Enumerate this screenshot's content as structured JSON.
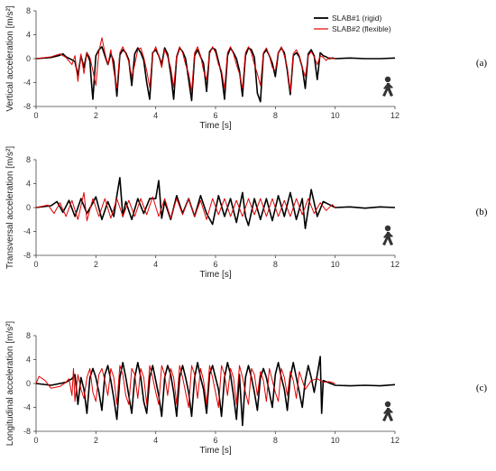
{
  "chart_data": [
    {
      "type": "line",
      "panel_label": "(a)",
      "xlabel": "Time [s]",
      "ylabel": "Vertical acceleration  [m/s²]",
      "xlim": [
        0,
        12
      ],
      "ylim": [
        -8,
        8
      ],
      "xticks": [
        0,
        2,
        4,
        6,
        8,
        10,
        12
      ],
      "yticks": [
        -8,
        -4,
        0,
        4,
        8
      ],
      "grid": false,
      "legend": "top-right",
      "icon": "walking-person-icon",
      "series": [
        {
          "name": "SLAB#1 (rigid)",
          "color": "#000000",
          "x": [
            0,
            0.5,
            0.75,
            0.9,
            1.0,
            1.2,
            1.3,
            1.4,
            1.5,
            1.6,
            1.7,
            1.8,
            1.85,
            1.9,
            2.0,
            2.1,
            2.2,
            2.3,
            2.4,
            2.5,
            2.6,
            2.7,
            2.8,
            2.9,
            3.0,
            3.1,
            3.2,
            3.3,
            3.4,
            3.5,
            3.6,
            3.7,
            3.8,
            3.9,
            4.0,
            4.1,
            4.2,
            4.3,
            4.4,
            4.5,
            4.6,
            4.7,
            4.8,
            4.9,
            5.0,
            5.1,
            5.2,
            5.3,
            5.4,
            5.5,
            5.6,
            5.7,
            5.8,
            5.9,
            6.0,
            6.1,
            6.2,
            6.3,
            6.4,
            6.5,
            6.6,
            6.7,
            6.8,
            6.9,
            7.0,
            7.1,
            7.2,
            7.3,
            7.4,
            7.5,
            7.6,
            7.7,
            7.8,
            7.9,
            8.0,
            8.1,
            8.2,
            8.3,
            8.4,
            8.5,
            8.6,
            8.7,
            8.8,
            8.9,
            9.0,
            9.1,
            9.2,
            9.3,
            9.4,
            9.5,
            9.6,
            9.7,
            9.8,
            9.9,
            10.0,
            10.5,
            11.0,
            11.5,
            12.0
          ],
          "y": [
            0,
            0.2,
            0.5,
            0.8,
            0.3,
            -0.2,
            -0.5,
            -2.8,
            0.5,
            -1.5,
            1.0,
            -0.4,
            -4.0,
            -6.8,
            0.5,
            1.5,
            2.0,
            0.5,
            -1.0,
            0.8,
            -0.5,
            -6.3,
            0.6,
            1.5,
            1.0,
            -0.2,
            -4.5,
            0.8,
            1.8,
            1.0,
            -0.3,
            -4.0,
            -6.8,
            1.0,
            1.5,
            0.5,
            -1.0,
            1.8,
            0.8,
            -2.5,
            -6.8,
            0.3,
            1.8,
            1.2,
            0.0,
            -3.5,
            -7.0,
            0.5,
            1.5,
            0.3,
            -0.8,
            -5.5,
            1.2,
            1.8,
            1.5,
            -0.5,
            -2.5,
            -6.8,
            0.5,
            1.8,
            1.0,
            0.0,
            -2.0,
            -6.3,
            0.5,
            1.8,
            1.5,
            0.2,
            -5.8,
            -7.2,
            0.8,
            1.5,
            0.5,
            -0.8,
            -3.0,
            1.0,
            1.8,
            1.0,
            -2.0,
            -6.0,
            0.5,
            1.0,
            0.3,
            -1.5,
            -5.0,
            0.8,
            1.5,
            0.5,
            -3.5,
            1.0,
            0.5,
            0.3,
            0.0,
            0.1,
            0.0,
            0.1,
            0.0,
            0.0,
            0.1
          ]
        },
        {
          "name": "SLAB#2 (flexible)",
          "color": "#e00000",
          "x": [
            0,
            0.5,
            0.8,
            1.0,
            1.2,
            1.3,
            1.4,
            1.5,
            1.6,
            1.7,
            1.8,
            1.9,
            2.0,
            2.1,
            2.2,
            2.3,
            2.4,
            2.5,
            2.6,
            2.7,
            2.8,
            2.9,
            3.0,
            3.1,
            3.2,
            3.3,
            3.4,
            3.5,
            3.6,
            3.7,
            3.8,
            3.9,
            4.0,
            4.1,
            4.2,
            4.3,
            4.4,
            4.5,
            4.6,
            4.7,
            4.8,
            4.9,
            5.0,
            5.1,
            5.2,
            5.3,
            5.4,
            5.5,
            5.6,
            5.7,
            5.8,
            5.9,
            6.0,
            6.1,
            6.2,
            6.3,
            6.4,
            6.5,
            6.6,
            6.7,
            6.8,
            6.9,
            7.0,
            7.1,
            7.2,
            7.3,
            7.4,
            7.5,
            7.6,
            7.7,
            7.8,
            7.9,
            8.0,
            8.1,
            8.2,
            8.3,
            8.4,
            8.5,
            8.6,
            8.7,
            8.8,
            8.9,
            9.0,
            9.1,
            9.2,
            9.3,
            9.4,
            9.5,
            9.6,
            9.7,
            9.8,
            9.9,
            10.0
          ],
          "y": [
            0,
            0.3,
            0.8,
            0.2,
            -1.0,
            0.5,
            -3.8,
            0.8,
            -2.5,
            1.0,
            0.2,
            -2.0,
            -4.5,
            1.2,
            3.5,
            1.0,
            -1.0,
            1.5,
            -2.0,
            -5.0,
            1.0,
            2.0,
            0.8,
            -0.5,
            -3.0,
            -1.0,
            1.5,
            1.8,
            0.2,
            -2.0,
            -4.8,
            0.8,
            2.0,
            0.5,
            -1.5,
            1.5,
            0.3,
            -1.5,
            -4.8,
            0.5,
            2.0,
            1.0,
            -1.0,
            -2.5,
            -5.5,
            1.0,
            2.0,
            0.5,
            -2.0,
            -3.5,
            0.8,
            2.0,
            1.0,
            -1.0,
            -2.0,
            -5.0,
            1.0,
            2.0,
            0.8,
            -1.0,
            -2.5,
            -5.0,
            1.0,
            2.0,
            1.0,
            -1.0,
            -2.5,
            -4.5,
            1.0,
            1.8,
            0.5,
            -1.5,
            -2.0,
            1.0,
            2.0,
            0.5,
            -1.5,
            -5.5,
            0.8,
            1.5,
            0.5,
            -1.5,
            -3.0,
            0.5,
            1.2,
            0.3,
            -1.0,
            0.5,
            0.2,
            -0.3,
            0.2,
            0.0,
            0.0
          ]
        }
      ]
    },
    {
      "type": "line",
      "panel_label": "(b)",
      "xlabel": "Time [s]",
      "ylabel": "Transversal acceleration  [m/s²]",
      "xlim": [
        0,
        12
      ],
      "ylim": [
        -8,
        8
      ],
      "xticks": [
        0,
        2,
        4,
        6,
        8,
        10,
        12
      ],
      "yticks": [
        -8,
        -4,
        0,
        4,
        8
      ],
      "grid": false,
      "icon": "walking-person-icon",
      "series": [
        {
          "name": "SLAB#1 (rigid)",
          "color": "#000000",
          "x": [
            0,
            0.5,
            0.7,
            0.9,
            1.1,
            1.3,
            1.5,
            1.7,
            1.9,
            2.0,
            2.2,
            2.4,
            2.6,
            2.7,
            2.8,
            2.9,
            3.0,
            3.2,
            3.4,
            3.6,
            3.8,
            4.0,
            4.1,
            4.2,
            4.3,
            4.5,
            4.7,
            4.9,
            5.1,
            5.3,
            5.5,
            5.7,
            5.9,
            6.1,
            6.3,
            6.5,
            6.7,
            6.9,
            7.0,
            7.1,
            7.3,
            7.5,
            7.7,
            7.9,
            8.1,
            8.3,
            8.5,
            8.7,
            8.9,
            9.0,
            9.2,
            9.4,
            9.6,
            9.8,
            10.0,
            10.5,
            11.0,
            11.5,
            12.0
          ],
          "y": [
            0,
            0.3,
            1.0,
            -0.8,
            1.2,
            -1.5,
            1.5,
            -1.0,
            0.8,
            1.8,
            -2.0,
            1.0,
            -1.5,
            2.0,
            5.0,
            -1.5,
            1.0,
            -2.0,
            1.5,
            -1.0,
            1.5,
            1.5,
            4.5,
            -1.8,
            1.0,
            -2.0,
            2.0,
            -1.0,
            1.5,
            -1.5,
            2.0,
            -1.0,
            -2.8,
            2.0,
            -1.5,
            1.5,
            -2.5,
            2.5,
            -1.5,
            -3.0,
            1.5,
            -2.0,
            1.5,
            -2.2,
            2.0,
            -1.5,
            2.5,
            -2.0,
            1.5,
            -3.5,
            3.0,
            -1.5,
            1.0,
            0.5,
            0.0,
            0.1,
            -0.1,
            0.1,
            0.0
          ]
        },
        {
          "name": "SLAB#2 (flexible)",
          "color": "#e00000",
          "x": [
            0,
            0.4,
            0.6,
            0.8,
            1.0,
            1.2,
            1.4,
            1.6,
            1.7,
            1.9,
            2.1,
            2.3,
            2.5,
            2.7,
            2.9,
            3.1,
            3.3,
            3.5,
            3.7,
            3.9,
            4.1,
            4.3,
            4.5,
            4.7,
            4.9,
            5.1,
            5.3,
            5.5,
            5.7,
            5.9,
            6.1,
            6.3,
            6.5,
            6.7,
            6.9,
            7.1,
            7.3,
            7.5,
            7.7,
            7.9,
            8.1,
            8.3,
            8.5,
            8.7,
            8.9,
            9.1,
            9.3,
            9.5,
            9.7,
            9.9,
            10.0
          ],
          "y": [
            0,
            0.4,
            -1.0,
            0.8,
            -1.5,
            1.2,
            -2.0,
            2.5,
            -2.2,
            1.5,
            -1.5,
            1.5,
            -1.8,
            1.5,
            -1.5,
            1.2,
            -1.5,
            1.5,
            -1.2,
            1.8,
            -1.5,
            1.5,
            -1.8,
            1.5,
            -1.2,
            1.5,
            -1.5,
            1.2,
            -2.0,
            1.5,
            -1.2,
            1.5,
            -1.5,
            1.2,
            -1.5,
            1.5,
            -1.2,
            1.5,
            -1.5,
            1.5,
            -1.5,
            1.2,
            -1.5,
            1.5,
            -1.2,
            1.5,
            -1.0,
            0.8,
            -0.5,
            0.5,
            0.0
          ]
        }
      ]
    },
    {
      "type": "line",
      "panel_label": "(c)",
      "xlabel": "Time [s]",
      "ylabel": "Longitudinal acceleration  [m/s²]",
      "xlim": [
        0,
        12
      ],
      "ylim": [
        -8,
        8
      ],
      "xticks": [
        0,
        2,
        4,
        6,
        8,
        10,
        12
      ],
      "yticks": [
        -8,
        -4,
        0,
        4,
        8
      ],
      "grid": false,
      "icon": "walking-person-icon",
      "series": [
        {
          "name": "SLAB#1 (rigid)",
          "color": "#000000",
          "x": [
            0,
            0.5,
            1.0,
            1.2,
            1.3,
            1.4,
            1.5,
            1.6,
            1.7,
            1.8,
            1.9,
            2.0,
            2.1,
            2.2,
            2.3,
            2.4,
            2.5,
            2.6,
            2.7,
            2.8,
            2.9,
            3.0,
            3.1,
            3.2,
            3.3,
            3.4,
            3.5,
            3.6,
            3.7,
            3.8,
            3.9,
            4.0,
            4.1,
            4.2,
            4.3,
            4.4,
            4.5,
            4.6,
            4.7,
            4.8,
            4.9,
            5.0,
            5.1,
            5.2,
            5.3,
            5.4,
            5.5,
            5.6,
            5.7,
            5.8,
            5.9,
            6.0,
            6.1,
            6.2,
            6.3,
            6.4,
            6.5,
            6.6,
            6.7,
            6.8,
            6.9,
            7.0,
            7.1,
            7.2,
            7.3,
            7.4,
            7.5,
            7.6,
            7.7,
            7.8,
            7.9,
            8.0,
            8.1,
            8.2,
            8.3,
            8.4,
            8.5,
            8.6,
            8.7,
            8.8,
            8.9,
            9.0,
            9.1,
            9.2,
            9.3,
            9.4,
            9.5,
            9.55,
            9.6,
            9.7,
            10.0,
            10.5,
            11.0,
            11.5,
            12.0
          ],
          "y": [
            0,
            -0.3,
            0.2,
            0.8,
            1.5,
            -3.5,
            1.0,
            -1.0,
            -5.0,
            1.0,
            2.5,
            1.0,
            -1.5,
            -4.5,
            1.5,
            3.0,
            0.5,
            -2.5,
            -6.0,
            1.0,
            3.5,
            1.0,
            -2.0,
            -5.0,
            1.0,
            3.5,
            1.0,
            -3.0,
            -5.0,
            1.0,
            3.0,
            0.5,
            -2.0,
            -5.5,
            1.0,
            3.0,
            1.5,
            -1.5,
            -5.5,
            1.0,
            3.0,
            1.0,
            -1.5,
            -5.5,
            1.0,
            3.5,
            1.0,
            -1.0,
            -5.0,
            1.5,
            3.0,
            1.0,
            -1.0,
            -5.5,
            1.0,
            3.5,
            1.5,
            -2.0,
            -6.0,
            1.5,
            -7.0,
            1.0,
            3.0,
            1.0,
            -1.5,
            -4.5,
            1.0,
            2.5,
            1.0,
            -1.5,
            -4.0,
            1.5,
            3.5,
            1.0,
            -1.0,
            -4.5,
            1.0,
            3.5,
            1.0,
            -1.5,
            -4.0,
            0.5,
            3.0,
            1.0,
            -1.5,
            1.5,
            4.5,
            -5.0,
            0.5,
            0.3,
            -0.3,
            -0.4,
            -0.3,
            -0.4,
            -0.2
          ]
        },
        {
          "name": "SLAB#2 (flexible)",
          "color": "#e00000",
          "x": [
            0,
            0.1,
            0.3,
            0.5,
            0.8,
            1.0,
            1.1,
            1.2,
            1.25,
            1.3,
            1.4,
            1.5,
            1.6,
            1.7,
            1.8,
            1.9,
            2.0,
            2.1,
            2.2,
            2.3,
            2.4,
            2.5,
            2.6,
            2.7,
            2.8,
            2.9,
            3.0,
            3.1,
            3.2,
            3.3,
            3.4,
            3.5,
            3.6,
            3.7,
            3.8,
            3.9,
            4.0,
            4.1,
            4.2,
            4.3,
            4.4,
            4.5,
            4.6,
            4.7,
            4.8,
            4.9,
            5.0,
            5.1,
            5.2,
            5.3,
            5.4,
            5.5,
            5.6,
            5.7,
            5.8,
            5.9,
            6.0,
            6.1,
            6.2,
            6.3,
            6.4,
            6.5,
            6.6,
            6.7,
            6.8,
            6.9,
            7.0,
            7.1,
            7.2,
            7.3,
            7.4,
            7.5,
            7.6,
            7.7,
            7.8,
            7.9,
            8.0,
            8.1,
            8.2,
            8.3,
            8.4,
            8.5,
            8.6,
            8.7,
            8.8,
            8.9,
            9.0,
            9.2,
            9.4,
            9.6,
            9.8,
            10.0
          ],
          "y": [
            0,
            1.2,
            0.5,
            -0.8,
            -0.5,
            0.2,
            0.8,
            -2.0,
            2.5,
            -3.0,
            1.5,
            -1.0,
            -2.5,
            1.0,
            2.5,
            -1.5,
            -3.0,
            1.5,
            2.5,
            0.5,
            -2.0,
            2.5,
            1.0,
            -3.5,
            3.0,
            1.5,
            -2.0,
            -3.5,
            2.5,
            1.5,
            -2.5,
            2.5,
            1.0,
            -3.5,
            3.0,
            1.0,
            -1.5,
            -3.5,
            3.0,
            1.5,
            -2.0,
            2.5,
            1.0,
            -3.5,
            3.0,
            1.0,
            -1.5,
            -4.0,
            3.0,
            1.5,
            -2.5,
            2.5,
            0.5,
            -3.5,
            3.0,
            1.0,
            -1.5,
            -4.0,
            3.0,
            1.5,
            -2.0,
            2.5,
            1.0,
            -3.5,
            3.0,
            1.0,
            -1.5,
            -3.5,
            2.5,
            1.5,
            -2.0,
            2.0,
            0.5,
            -3.0,
            2.5,
            0.5,
            -1.5,
            -3.0,
            2.5,
            1.0,
            -2.0,
            2.0,
            0.5,
            -2.5,
            2.0,
            0.5,
            -1.0,
            0.5,
            0.8,
            0.2,
            0.3,
            0.0
          ]
        }
      ]
    }
  ]
}
